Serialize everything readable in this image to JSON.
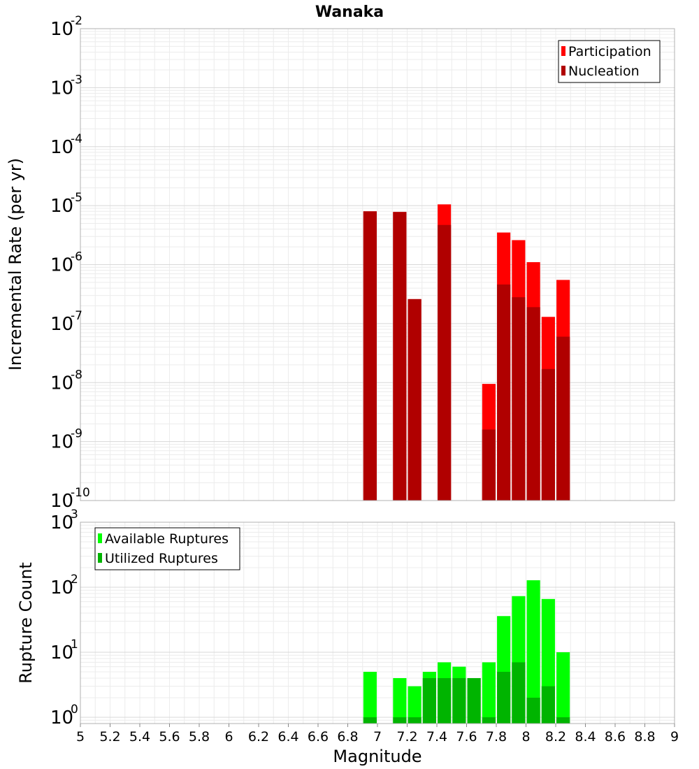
{
  "chart_data": [
    {
      "type": "bar",
      "title": "Wanaka",
      "ylabel": "Incremental Rate (per yr)",
      "xlabel": "",
      "yscale": "log",
      "ylim": [
        1e-10,
        0.01
      ],
      "xlim": [
        5,
        9
      ],
      "bar_width": 0.09,
      "y_ticks": [
        {
          "base": "10",
          "exp": "-10",
          "value": 1e-10
        },
        {
          "base": "10",
          "exp": "-9",
          "value": 1e-09
        },
        {
          "base": "10",
          "exp": "-8",
          "value": 1e-08
        },
        {
          "base": "10",
          "exp": "-7",
          "value": 1e-07
        },
        {
          "base": "10",
          "exp": "-6",
          "value": 1e-06
        },
        {
          "base": "10",
          "exp": "-5",
          "value": 1e-05
        },
        {
          "base": "10",
          "exp": "-4",
          "value": 0.0001
        },
        {
          "base": "10",
          "exp": "-3",
          "value": 0.001
        },
        {
          "base": "10",
          "exp": "-2",
          "value": 0.01
        }
      ],
      "legend": {
        "position": "top-right"
      },
      "series": [
        {
          "name": "Participation",
          "color": "#ff0000",
          "x": [
            6.95,
            7.15,
            7.25,
            7.45,
            7.75,
            7.85,
            7.95,
            8.05,
            8.15,
            8.25
          ],
          "values": [
            8e-06,
            7.8e-06,
            2.6e-07,
            1.05e-05,
            9.5e-09,
            3.5e-06,
            2.6e-06,
            1.1e-06,
            1.3e-07,
            5.5e-07
          ]
        },
        {
          "name": "Nucleation",
          "color": "#b00000",
          "x": [
            6.95,
            7.15,
            7.25,
            7.45,
            7.75,
            7.85,
            7.95,
            8.05,
            8.15,
            8.25
          ],
          "values": [
            8e-06,
            7.8e-06,
            2.6e-07,
            4.7e-06,
            1.6e-09,
            4.6e-07,
            2.8e-07,
            1.9e-07,
            1.7e-08,
            6e-08
          ]
        }
      ]
    },
    {
      "type": "bar",
      "title": "",
      "ylabel": "Rupture Count",
      "xlabel": "Magnitude",
      "yscale": "log",
      "ylim": [
        0.8,
        1000
      ],
      "xlim": [
        5,
        9
      ],
      "bar_width": 0.09,
      "x_ticks": [
        "5",
        "5.2",
        "5.4",
        "5.6",
        "5.8",
        "6",
        "6.2",
        "6.4",
        "6.6",
        "6.8",
        "7",
        "7.2",
        "7.4",
        "7.6",
        "7.8",
        "8",
        "8.2",
        "8.4",
        "8.6",
        "8.8",
        "9"
      ],
      "y_ticks": [
        {
          "base": "10",
          "exp": "0",
          "value": 1
        },
        {
          "base": "10",
          "exp": "1",
          "value": 10
        },
        {
          "base": "10",
          "exp": "2",
          "value": 100
        },
        {
          "base": "10",
          "exp": "3",
          "value": 1000
        }
      ],
      "legend": {
        "position": "top-left"
      },
      "series": [
        {
          "name": "Available Ruptures",
          "color": "#00ff00",
          "x": [
            6.95,
            7.15,
            7.25,
            7.35,
            7.45,
            7.55,
            7.65,
            7.75,
            7.85,
            7.95,
            8.05,
            8.15,
            8.25
          ],
          "values": [
            5,
            4,
            3,
            5,
            7,
            6,
            4,
            7,
            36,
            73,
            128,
            66,
            10
          ]
        },
        {
          "name": "Utilized Ruptures",
          "color": "#00b400",
          "x": [
            6.95,
            7.15,
            7.25,
            7.35,
            7.45,
            7.55,
            7.65,
            7.75,
            7.85,
            7.95,
            8.05,
            8.15,
            8.25
          ],
          "values": [
            1,
            1,
            1,
            4,
            4,
            4,
            4,
            1,
            5,
            7,
            2,
            3,
            1
          ]
        }
      ]
    }
  ]
}
